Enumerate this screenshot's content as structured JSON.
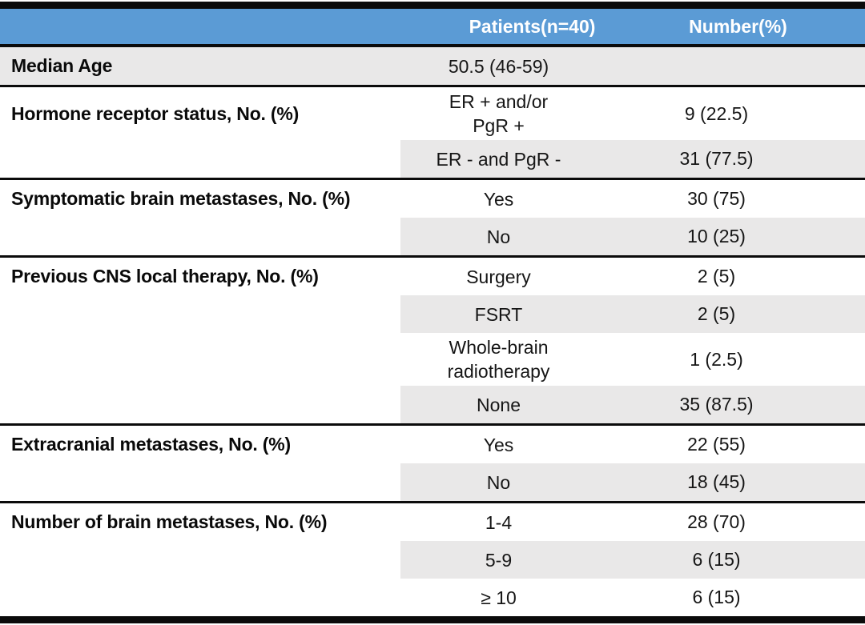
{
  "table": {
    "header": {
      "patients": "Patients(n=40)",
      "number": "Number(%)"
    },
    "sections": [
      {
        "label": "Median Age",
        "rows": [
          {
            "patients": "50.5 (46-59)",
            "number": ""
          }
        ]
      },
      {
        "label": "Hormone receptor status, No. (%)",
        "rows": [
          {
            "patients": "ER + and/or\nPgR +",
            "number": "9 (22.5)"
          },
          {
            "patients": "ER - and PgR -",
            "number": "31 (77.5)"
          }
        ]
      },
      {
        "label": "Symptomatic brain metastases, No. (%)",
        "rows": [
          {
            "patients": "Yes",
            "number": "30 (75)"
          },
          {
            "patients": "No",
            "number": "10 (25)"
          }
        ]
      },
      {
        "label": "Previous CNS local therapy, No. (%)",
        "rows": [
          {
            "patients": "Surgery",
            "number": "2 (5)"
          },
          {
            "patients": "FSRT",
            "number": "2 (5)"
          },
          {
            "patients": "Whole-brain\nradiotherapy",
            "number": "1 (2.5)"
          },
          {
            "patients": "None",
            "number": "35 (87.5)"
          }
        ]
      },
      {
        "label": "Extracranial metastases, No. (%)",
        "rows": [
          {
            "patients": "Yes",
            "number": "22 (55)"
          },
          {
            "patients": "No",
            "number": "18 (45)"
          }
        ]
      },
      {
        "label": "Number of brain metastases, No. (%)",
        "rows": [
          {
            "patients": "1-4",
            "number": "28 (70)"
          },
          {
            "patients": "5-9",
            "number": "6 (15)"
          },
          {
            "patients": "≥ 10",
            "number": "6 (15)"
          }
        ]
      }
    ],
    "colors": {
      "header_bg": "#5B9BD5",
      "header_text": "#FFFFFF",
      "band_bg": "#E9E8E8",
      "rule": "#0B0B0B",
      "body_text": "#161616"
    }
  }
}
